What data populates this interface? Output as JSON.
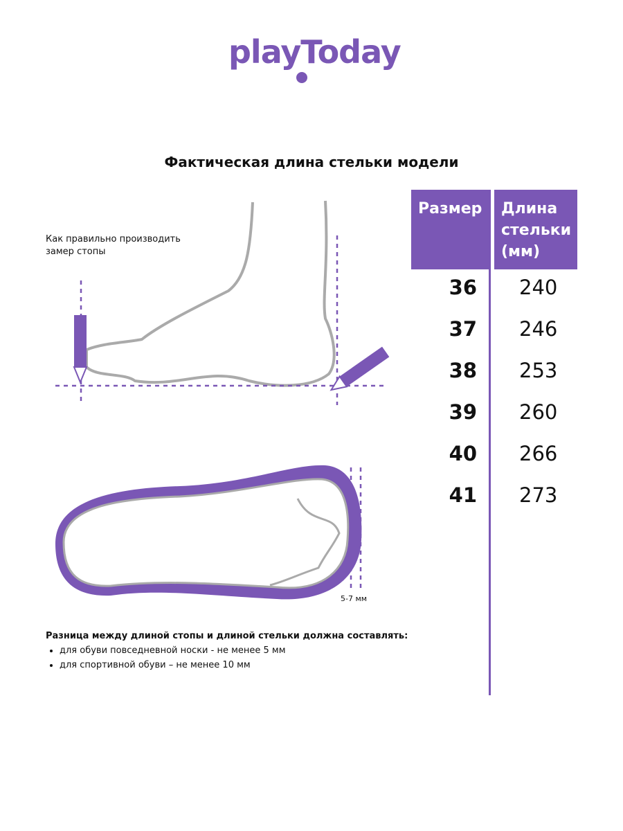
{
  "brand": {
    "logo_text": "playToday",
    "color": "#7a57b5"
  },
  "title": "Фактическая длина стельки модели",
  "table": {
    "headers": [
      "Размер",
      "Длина стельки (мм)"
    ],
    "rows": [
      {
        "size": "36",
        "length": "240"
      },
      {
        "size": "37",
        "length": "246"
      },
      {
        "size": "38",
        "length": "253"
      },
      {
        "size": "39",
        "length": "260"
      },
      {
        "size": "40",
        "length": "266"
      },
      {
        "size": "41",
        "length": "273"
      }
    ]
  },
  "howto": "Как правильно производить замер стопы",
  "gap_label": "5-7 мм",
  "note": {
    "heading": "Разница между длиной стопы и длиной стельки должна составлять:",
    "items": [
      "для обуви повседневной носки -  не менее 5 мм",
      "для спортивной обуви – не менее 10 мм"
    ]
  }
}
